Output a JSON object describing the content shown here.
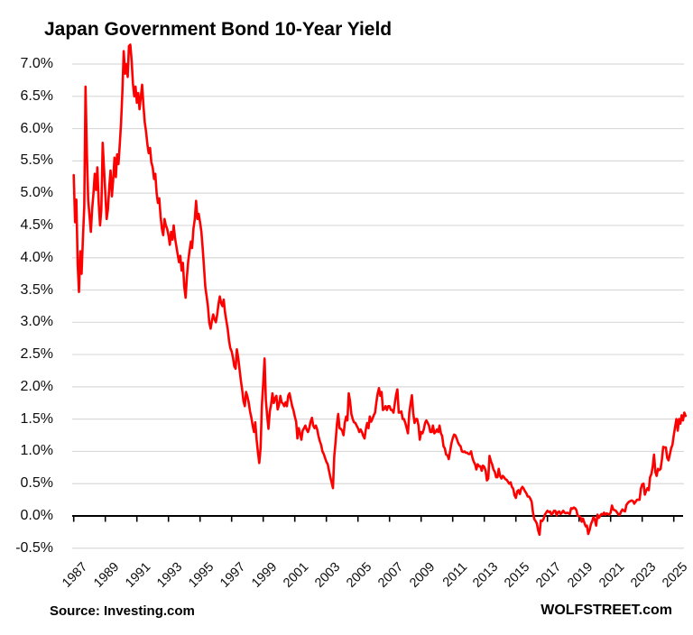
{
  "header": {
    "title": "Japan Government Bond 10-Year Yield"
  },
  "footer": {
    "source": "Source: Investing.com",
    "watermark": "WOLFSTREET.com"
  },
  "colors": {
    "line": "#FF0000",
    "gridline": "#D9D9D9",
    "axis": "#000000",
    "text": "#0d0d0d",
    "background": "#FFFFFF"
  },
  "chart_data": {
    "type": "line",
    "title": "Japan Government Bond 10-Year Yield",
    "xlabel": "",
    "ylabel": "",
    "unit": "%",
    "grid": "horizontal",
    "xlim": [
      1987,
      2025.83
    ],
    "ylim": [
      -0.5,
      7.35
    ],
    "y_tick_values": [
      7.0,
      6.5,
      6.0,
      5.5,
      5.0,
      4.5,
      4.0,
      3.5,
      3.0,
      2.5,
      2.0,
      1.5,
      1.0,
      0.5,
      0.0,
      -0.5
    ],
    "y_tick_labels": [
      "7.0%",
      "6.5%",
      "6.0%",
      "5.5%",
      "5.0%",
      "4.5%",
      "4.0%",
      "3.5%",
      "3.0%",
      "2.5%",
      "2.0%",
      "1.5%",
      "1.0%",
      "0.5%",
      "0.0%",
      "-0.5%"
    ],
    "x_tick_labels": [
      "1987",
      "1989",
      "1991",
      "1993",
      "1995",
      "1997",
      "1999",
      "2001",
      "2003",
      "2005",
      "2007",
      "2009",
      "2011",
      "2013",
      "2015",
      "2017",
      "2019",
      "2021",
      "2023",
      "2025"
    ],
    "series": [
      {
        "name": "Japan 10-year government bond yield (%)",
        "color": "#FF0000",
        "x_start_year": 1987.0,
        "x_step_years": 0.0833333,
        "values": [
          5.28,
          4.55,
          4.9,
          3.9,
          3.47,
          4.1,
          3.75,
          4.3,
          4.8,
          6.65,
          5.6,
          4.9,
          4.65,
          4.4,
          4.75,
          5.0,
          5.3,
          5.05,
          5.4,
          4.85,
          4.5,
          4.75,
          5.78,
          5.4,
          5.0,
          4.6,
          4.75,
          5.1,
          5.35,
          4.95,
          5.2,
          5.55,
          5.25,
          5.6,
          5.45,
          5.75,
          6.1,
          6.6,
          7.2,
          6.85,
          7.0,
          6.8,
          7.28,
          7.3,
          7.05,
          6.7,
          6.5,
          6.65,
          6.4,
          6.55,
          6.3,
          6.5,
          6.68,
          6.35,
          6.1,
          5.95,
          5.75,
          5.62,
          5.7,
          5.48,
          5.4,
          5.22,
          5.3,
          5.0,
          4.85,
          4.92,
          4.65,
          4.45,
          4.35,
          4.6,
          4.5,
          4.45,
          4.35,
          4.2,
          4.4,
          4.28,
          4.5,
          4.3,
          4.18,
          4.05,
          3.93,
          4.03,
          3.8,
          3.92,
          3.55,
          3.38,
          3.7,
          3.95,
          4.1,
          4.25,
          4.15,
          4.45,
          4.6,
          4.88,
          4.6,
          4.68,
          4.55,
          4.4,
          4.15,
          3.85,
          3.55,
          3.4,
          3.25,
          3.0,
          2.9,
          3.02,
          3.12,
          3.05,
          3.0,
          3.12,
          3.28,
          3.4,
          3.3,
          3.25,
          3.35,
          3.15,
          3.02,
          2.9,
          2.72,
          2.6,
          2.55,
          2.45,
          2.32,
          2.28,
          2.58,
          2.45,
          2.28,
          2.1,
          1.95,
          1.78,
          1.7,
          1.92,
          1.85,
          1.75,
          1.62,
          1.52,
          1.4,
          1.3,
          1.45,
          1.18,
          0.98,
          0.82,
          1.05,
          1.7,
          2.05,
          2.44,
          1.8,
          1.55,
          1.35,
          1.62,
          1.72,
          1.9,
          1.75,
          1.82,
          1.86,
          1.65,
          1.72,
          1.86,
          1.76,
          1.74,
          1.7,
          1.76,
          1.7,
          1.86,
          1.9,
          1.8,
          1.7,
          1.64,
          1.54,
          1.46,
          1.2,
          1.36,
          1.28,
          1.18,
          1.32,
          1.36,
          1.4,
          1.34,
          1.3,
          1.36,
          1.46,
          1.52,
          1.4,
          1.36,
          1.4,
          1.34,
          1.24,
          1.16,
          1.1,
          1.0,
          0.96,
          0.9,
          0.84,
          0.8,
          0.7,
          0.6,
          0.52,
          0.43,
          0.92,
          1.15,
          1.42,
          1.58,
          1.36,
          1.35,
          1.32,
          1.25,
          1.44,
          1.54,
          1.48,
          1.9,
          1.78,
          1.58,
          1.5,
          1.45,
          1.44,
          1.4,
          1.36,
          1.3,
          1.34,
          1.3,
          1.24,
          1.2,
          1.34,
          1.44,
          1.36,
          1.54,
          1.46,
          1.5,
          1.56,
          1.6,
          1.76,
          1.9,
          1.98,
          1.86,
          1.92,
          1.64,
          1.66,
          1.7,
          1.64,
          1.7,
          1.7,
          1.64,
          1.64,
          1.6,
          1.74,
          1.88,
          1.96,
          1.6,
          1.6,
          1.62,
          1.5,
          1.5,
          1.44,
          1.36,
          1.28,
          1.6,
          1.74,
          1.87,
          1.6,
          1.44,
          1.5,
          1.5,
          1.4,
          1.18,
          1.3,
          1.28,
          1.34,
          1.44,
          1.48,
          1.44,
          1.4,
          1.3,
          1.3,
          1.4,
          1.28,
          1.3,
          1.34,
          1.3,
          1.4,
          1.28,
          1.24,
          1.08,
          1.05,
          0.95,
          0.94,
          0.88,
          1.0,
          1.12,
          1.2,
          1.26,
          1.25,
          1.2,
          1.14,
          1.1,
          1.08,
          1.0,
          0.99,
          1.0,
          0.98,
          0.98,
          0.96,
          0.96,
          1.0,
          0.9,
          0.84,
          0.8,
          0.72,
          0.8,
          0.77,
          0.77,
          0.7,
          0.78,
          0.76,
          0.7,
          0.55,
          0.58,
          0.93,
          0.85,
          0.8,
          0.72,
          0.68,
          0.6,
          0.6,
          0.73,
          0.62,
          0.58,
          0.62,
          0.6,
          0.57,
          0.56,
          0.53,
          0.5,
          0.52,
          0.45,
          0.42,
          0.32,
          0.28,
          0.38,
          0.4,
          0.34,
          0.42,
          0.45,
          0.42,
          0.38,
          0.35,
          0.3,
          0.3,
          0.27,
          0.22,
          0.05,
          -0.05,
          -0.08,
          -0.12,
          -0.23,
          -0.29,
          -0.07,
          -0.08,
          -0.05,
          0.02,
          0.05,
          0.08,
          0.06,
          0.07,
          0.02,
          0.04,
          0.08,
          0.08,
          0.01,
          0.06,
          0.07,
          0.03,
          0.05,
          0.08,
          0.05,
          0.04,
          0.05,
          0.04,
          0.03,
          0.12,
          0.11,
          0.13,
          0.12,
          0.09,
          0.0,
          0.0,
          -0.02,
          -0.09,
          -0.04,
          -0.1,
          -0.16,
          -0.15,
          -0.28,
          -0.22,
          -0.13,
          -0.08,
          -0.02,
          -0.06,
          -0.15,
          0.02,
          -0.03,
          0.0,
          0.03,
          0.02,
          0.05,
          0.02,
          0.04,
          0.03,
          0.02,
          0.05,
          0.16,
          0.1,
          0.09,
          0.08,
          0.05,
          0.02,
          0.02,
          0.07,
          0.1,
          0.08,
          0.07,
          0.17,
          0.2,
          0.22,
          0.23,
          0.24,
          0.23,
          0.19,
          0.22,
          0.25,
          0.25,
          0.25,
          0.42,
          0.49,
          0.5,
          0.33,
          0.39,
          0.43,
          0.4,
          0.6,
          0.65,
          0.77,
          0.95,
          0.68,
          0.62,
          0.73,
          0.71,
          0.73,
          0.88,
          1.07,
          1.06,
          1.06,
          0.9,
          0.86,
          0.95,
          1.05,
          1.1,
          1.25,
          1.38,
          1.5,
          1.32,
          1.5,
          1.43,
          1.56,
          1.48,
          1.6,
          1.55
        ]
      }
    ]
  }
}
